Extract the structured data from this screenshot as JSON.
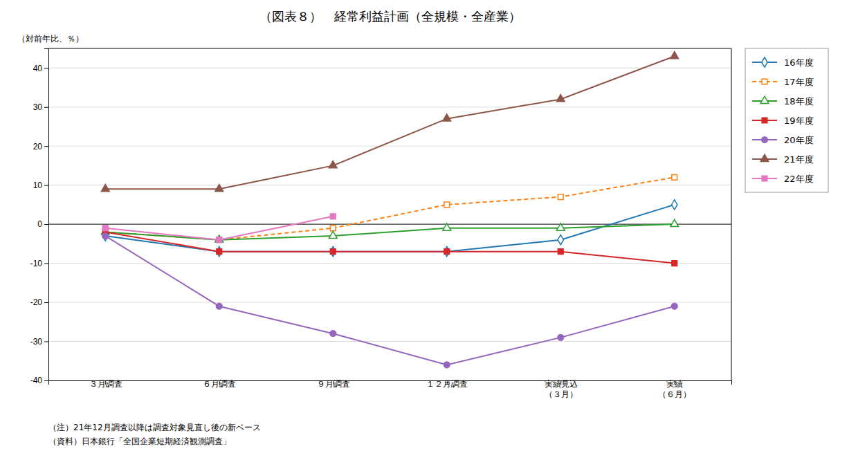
{
  "chart_data": {
    "type": "line",
    "title": "（図表８）　経常利益計画（全規模・全産業）",
    "y_label": "（対前年比、％）",
    "annotations": [
      "（注）21年12月調査以降は調査対象見直し後の新ベース",
      "（資料）日本銀行「全国企業短期経済観測調査」"
    ],
    "categories": [
      "３月調査",
      "６月調査",
      "９月調査",
      "１２月調査",
      "実績見込\n（３月）",
      "実績\n（６月）"
    ],
    "ylim": [
      -40,
      45
    ],
    "yticks": [
      -40,
      -30,
      -20,
      -10,
      0,
      10,
      20,
      30,
      40
    ],
    "grid": true,
    "legend": "right",
    "series": [
      {
        "name": "16年度",
        "values": [
          -3,
          -7,
          -7,
          -7,
          -4,
          5
        ],
        "marker": "diamond-open",
        "line_style": "solid"
      },
      {
        "name": "17年度",
        "values": [
          -2,
          -4,
          -1,
          5,
          7,
          12
        ],
        "marker": "square-open",
        "line_style": "dashed"
      },
      {
        "name": "18年度",
        "values": [
          -2,
          -4,
          -3,
          -1,
          -1,
          0
        ],
        "marker": "triangle-open",
        "line_style": "solid"
      },
      {
        "name": "19年度",
        "values": [
          -2,
          -7,
          -7,
          -7,
          -7,
          -10
        ],
        "marker": "square",
        "line_style": "solid"
      },
      {
        "name": "20年度",
        "values": [
          -3,
          -21,
          -28,
          -36,
          -29,
          -21
        ],
        "marker": "circle",
        "line_style": "solid"
      },
      {
        "name": "21年度",
        "values": [
          9,
          9,
          15,
          27,
          32,
          43
        ],
        "marker": "triangle",
        "line_style": "solid"
      },
      {
        "name": "22年度",
        "values": [
          -1,
          -4,
          2,
          null,
          null,
          null
        ],
        "marker": "square",
        "line_style": "solid"
      }
    ]
  }
}
